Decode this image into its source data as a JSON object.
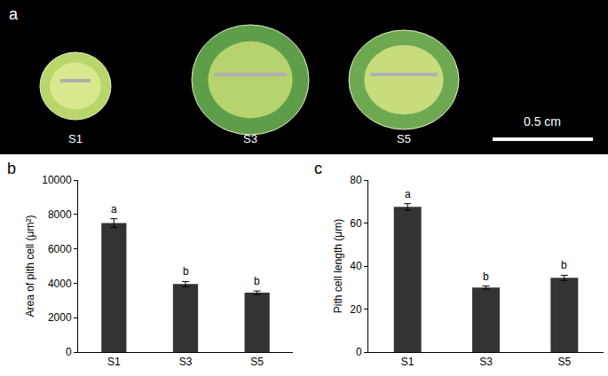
{
  "photo_panel": {
    "label": "a",
    "samples": [
      "S1",
      "S3",
      "S5"
    ],
    "scale_bar": "0.5 cm"
  },
  "chart_data": [
    {
      "type": "bar",
      "title": "b",
      "categories": [
        "S1",
        "S3",
        "S5"
      ],
      "values": [
        7500,
        3950,
        3450
      ],
      "error": [
        250,
        150,
        100
      ],
      "annotations": [
        "a",
        "b",
        "b"
      ],
      "y_label": "Area of pith cell (μm²)",
      "color": "#333333",
      "ylim": [
        0,
        10000
      ],
      "yticks": [
        0,
        2000,
        4000,
        6000,
        8000,
        10000
      ],
      "grid": false
    },
    {
      "type": "bar",
      "title": "c",
      "categories": [
        "S1",
        "S3",
        "S5"
      ],
      "values": [
        67.5,
        30,
        34.5
      ],
      "error": [
        1.5,
        0.7,
        1.2
      ],
      "annotations": [
        "a",
        "b",
        "b"
      ],
      "y_label": "Pith cell length (μm)",
      "color": "#333333",
      "ylim": [
        0,
        80
      ],
      "yticks": [
        0,
        20,
        40,
        60,
        80
      ],
      "grid": false
    }
  ]
}
